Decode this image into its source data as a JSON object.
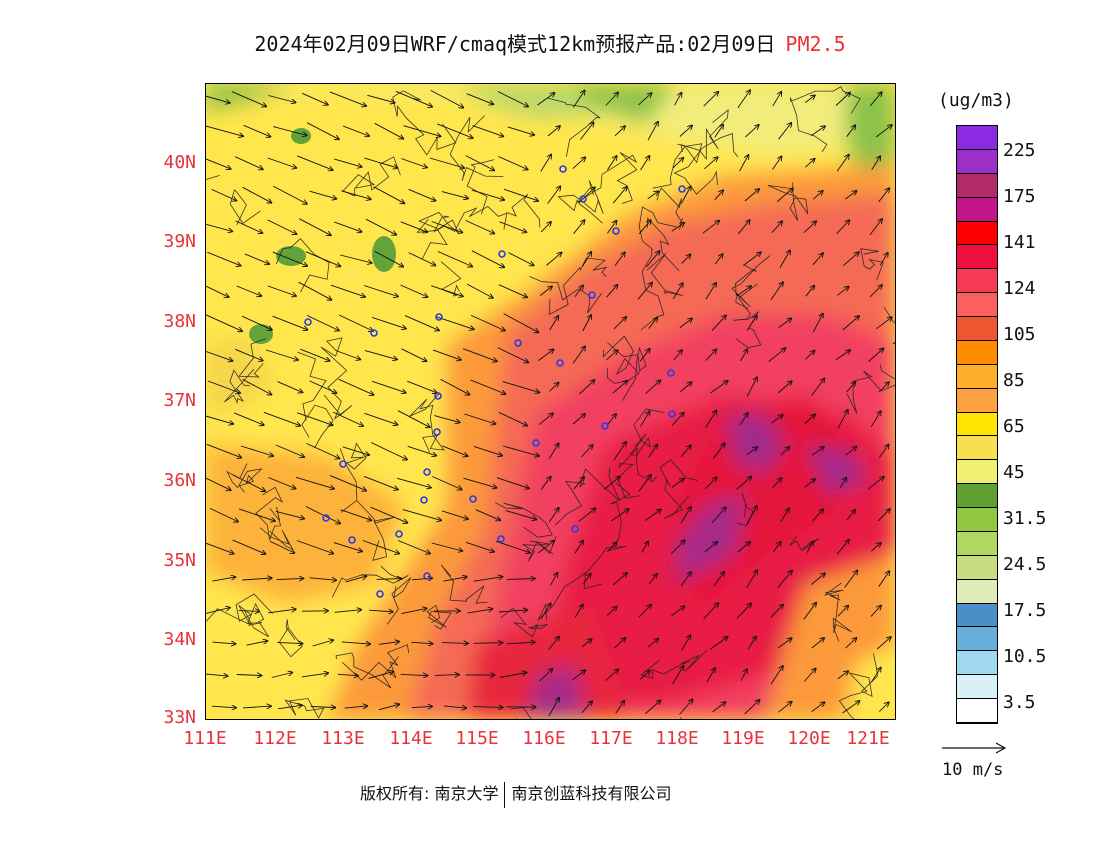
{
  "title": {
    "main": "2024年02月09日WRF/cmaq模式12km预报产品:02月09日",
    "variable": "PM2.5"
  },
  "axes": {
    "lat_labels": [
      "40N",
      "39N",
      "38N",
      "37N",
      "36N",
      "35N",
      "34N",
      "33N"
    ],
    "lon_labels": [
      "111E",
      "112E",
      "113E",
      "114E",
      "115E",
      "116E",
      "117E",
      "118E",
      "119E",
      "120E",
      "121E"
    ]
  },
  "legend": {
    "units": "(ug/m3)",
    "colors": [
      "#8a2be2",
      "#9a30c8",
      "#b22a6a",
      "#c0158a",
      "#ff0000",
      "#f01040",
      "#f53a55",
      "#fa6060",
      "#ef5530",
      "#ff8c00",
      "#ffb02a",
      "#fca040",
      "#ffe500",
      "#f5e050",
      "#f0f070",
      "#60a030",
      "#90c840",
      "#b0d860",
      "#c8dc80",
      "#e0ecb8",
      "#4a8fc8",
      "#6aaedc",
      "#a0d8f0",
      "#d8f0f8",
      "#ffffff"
    ],
    "labels": [
      "225",
      "175",
      "141",
      "124",
      "105",
      "85",
      "65",
      "45",
      "31.5",
      "24.5",
      "17.5",
      "10.5",
      "3.5"
    ]
  },
  "wind_reference": {
    "label": "10 m/s"
  },
  "footer": {
    "left": "版权所有: 南京大学",
    "right": "南京创蓝科技有限公司"
  }
}
